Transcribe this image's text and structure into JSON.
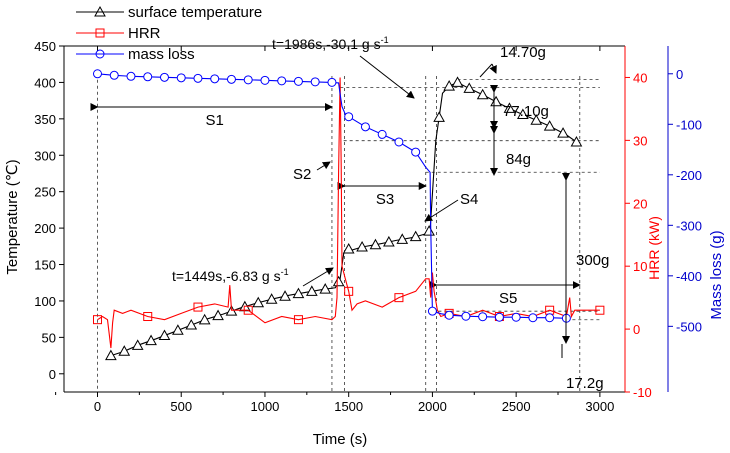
{
  "chart_data": {
    "type": "line",
    "xlabel": "Time (s)",
    "xlim": [
      -200,
      3150
    ],
    "x_ticks": [
      0,
      500,
      1000,
      1500,
      2000,
      2500,
      3000
    ],
    "axes": {
      "temperature": {
        "label": "Temperature (℃)",
        "lim": [
          -25,
          450
        ],
        "ticks": [
          0,
          50,
          100,
          150,
          200,
          250,
          300,
          350,
          400,
          450
        ],
        "color": "#000000"
      },
      "hrr": {
        "label": "HRR (kW)",
        "lim": [
          -10,
          45
        ],
        "ticks": [
          -10,
          0,
          10,
          20,
          30,
          40
        ],
        "color": "#ff0000"
      },
      "mass": {
        "label": "Mass loss (g)",
        "lim": [
          -630,
          55
        ],
        "ticks": [
          -500,
          -400,
          -300,
          -200,
          -100,
          0
        ],
        "color": "#0000cc"
      }
    },
    "legend": {
      "position": "top-left"
    },
    "series": [
      {
        "name": "surface temperature",
        "axis": "temperature",
        "color": "#000000",
        "marker": "triangle",
        "x": [
          80,
          150,
          250,
          350,
          450,
          550,
          650,
          750,
          850,
          950,
          1050,
          1150,
          1250,
          1350,
          1420,
          1449,
          1470,
          1490,
          1520,
          1580,
          1680,
          1780,
          1880,
          1960,
          1986,
          2020,
          2040,
          2060,
          2100,
          2150,
          2200,
          2300,
          2400,
          2500,
          2600,
          2700,
          2800,
          2880
        ],
        "y": [
          25,
          30,
          40,
          48,
          57,
          66,
          75,
          82,
          90,
          97,
          103,
          108,
          112,
          116,
          118,
          130,
          165,
          172,
          170,
          174,
          178,
          183,
          187,
          192,
          197,
          320,
          352,
          385,
          395,
          400,
          394,
          383,
          371,
          360,
          350,
          340,
          328,
          315
        ],
        "marker_x": [
          80,
          160,
          240,
          320,
          400,
          480,
          560,
          640,
          720,
          800,
          880,
          960,
          1040,
          1120,
          1200,
          1280,
          1360,
          1440,
          1500,
          1580,
          1660,
          1740,
          1820,
          1900,
          1980,
          2040,
          2100,
          2150,
          2220,
          2300,
          2380,
          2460,
          2540,
          2620,
          2700,
          2780,
          2860
        ]
      },
      {
        "name": "HRR",
        "axis": "hrr",
        "color": "#ff0000",
        "marker": "square",
        "x": [
          0,
          30,
          60,
          80,
          90,
          100,
          150,
          200,
          300,
          400,
          500,
          600,
          700,
          780,
          790,
          800,
          900,
          1000,
          1100,
          1200,
          1300,
          1400,
          1420,
          1430,
          1440,
          1449,
          1455,
          1460,
          1470,
          1480,
          1500,
          1520,
          1550,
          1600,
          1700,
          1800,
          1900,
          1960,
          1980,
          1990,
          2000,
          2010,
          2030,
          2050,
          2100,
          2200,
          2300,
          2400,
          2500,
          2600,
          2700,
          2800,
          2820,
          2830,
          2850,
          2900,
          3000
        ],
        "y": [
          1.5,
          2,
          1.5,
          -3,
          1,
          3,
          2.5,
          3,
          2,
          1.5,
          2.5,
          3.5,
          4,
          3.5,
          7,
          3,
          3,
          1,
          2,
          1.5,
          2,
          1.5,
          2,
          5,
          25,
          40,
          26,
          10,
          9,
          8,
          6,
          3,
          4,
          4.5,
          3.5,
          5,
          6,
          8,
          8,
          5,
          9,
          6,
          3,
          2,
          2.5,
          2,
          3,
          2,
          2.5,
          2,
          3,
          2,
          5,
          2,
          3,
          3,
          3
        ],
        "marker_x": [
          0,
          300,
          600,
          900,
          1200,
          1500,
          1800,
          2100,
          2400,
          2700,
          3000
        ]
      },
      {
        "name": "mass loss",
        "axis": "mass",
        "color": "#0000ff",
        "marker": "circle",
        "x": [
          0,
          100,
          200,
          300,
          400,
          500,
          600,
          700,
          800,
          900,
          1000,
          1100,
          1200,
          1300,
          1400,
          1440,
          1449,
          1460,
          1480,
          1500,
          1600,
          1700,
          1800,
          1900,
          1960,
          1986,
          1990,
          2000,
          2050,
          2100,
          2200,
          2300,
          2400,
          2500,
          2600,
          2700,
          2800
        ],
        "y": [
          0,
          -3,
          -5,
          -6,
          -7,
          -8,
          -9,
          -10,
          -11,
          -12,
          -13,
          -14,
          -15,
          -16,
          -17,
          -18,
          -40,
          -65,
          -80,
          -85,
          -105,
          -120,
          -135,
          -155,
          -185,
          -195,
          -300,
          -470,
          -475,
          -478,
          -480,
          -481,
          -482,
          -482,
          -483,
          -483,
          -484
        ],
        "marker_x": [
          0,
          100,
          200,
          300,
          400,
          500,
          600,
          700,
          800,
          900,
          1000,
          1100,
          1200,
          1300,
          1400,
          1500,
          1600,
          1700,
          1800,
          1900,
          2000,
          2100,
          2200,
          2300,
          2400,
          2500,
          2600,
          2700,
          2800
        ]
      }
    ],
    "stage_lines": [
      1400,
      1475,
      1960,
      2025,
      2880
    ],
    "stages": [
      {
        "label": "S1",
        "from": 0,
        "to": 1400
      },
      {
        "label": "S3",
        "from": 1475,
        "to": 1960
      },
      {
        "label": "S5",
        "from": 2025,
        "to": 2880
      }
    ],
    "annotations": {
      "t1": {
        "text": "t=1449s,-6.83 g s",
        "sup": "-1"
      },
      "t2": {
        "text": "t=1986s,-30.1 g s",
        "sup": "-1"
      },
      "s2": "S2",
      "s4": "S4",
      "m1": "14.70g",
      "m2": "77.10g",
      "m3": "84g",
      "m4": "300g",
      "m5": "17.2g"
    }
  }
}
